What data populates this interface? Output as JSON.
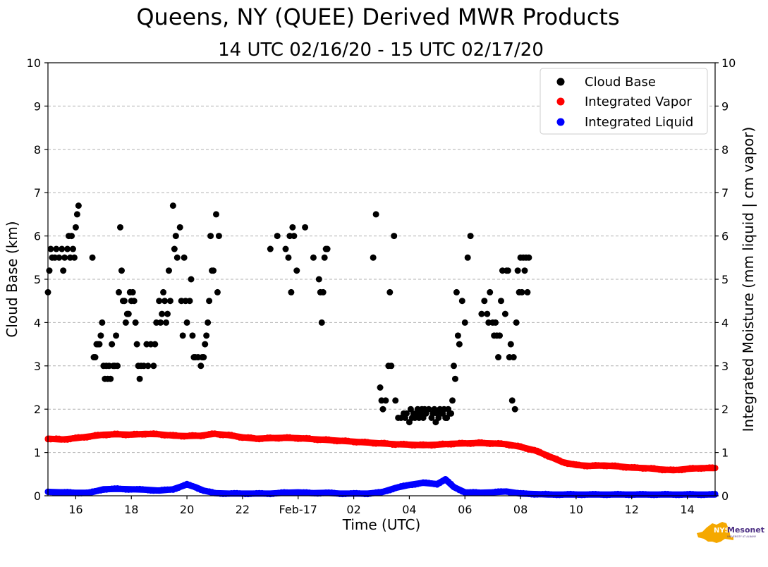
{
  "chart_data": {
    "type": "scatter",
    "title": "Queens, NY (QUEE) Derived MWR Products",
    "subtitle": "14 UTC 02/16/20 - 15 UTC 02/17/20",
    "xlabel": "Time (UTC)",
    "ylabel": "Cloud Base (km)",
    "ylabel_right": "Integrated Moisture (mm liquid | cm vapor)",
    "xlim": [
      15,
      39
    ],
    "ylim": [
      0,
      10
    ],
    "grid": true,
    "legend_position": "top-right",
    "x_ticks": [
      {
        "value": 16,
        "label": "16"
      },
      {
        "value": 18,
        "label": "18"
      },
      {
        "value": 20,
        "label": "20"
      },
      {
        "value": 22,
        "label": "22"
      },
      {
        "value": 24,
        "label": "Feb-17"
      },
      {
        "value": 26,
        "label": "02"
      },
      {
        "value": 28,
        "label": "04"
      },
      {
        "value": 30,
        "label": "06"
      },
      {
        "value": 32,
        "label": "08"
      },
      {
        "value": 34,
        "label": "10"
      },
      {
        "value": 36,
        "label": "12"
      },
      {
        "value": 38,
        "label": "14"
      }
    ],
    "y_ticks": [
      "0",
      "1",
      "2",
      "3",
      "4",
      "5",
      "6",
      "7",
      "8",
      "9",
      "10"
    ],
    "series": [
      {
        "name": "Cloud Base",
        "color": "#000000",
        "points": [
          [
            15.0,
            4.7
          ],
          [
            15.05,
            5.2
          ],
          [
            15.1,
            5.7
          ],
          [
            15.15,
            5.5
          ],
          [
            15.25,
            5.5
          ],
          [
            15.3,
            5.7
          ],
          [
            15.4,
            5.5
          ],
          [
            15.5,
            5.7
          ],
          [
            15.55,
            5.2
          ],
          [
            15.6,
            5.5
          ],
          [
            15.7,
            5.7
          ],
          [
            15.75,
            6.0
          ],
          [
            15.8,
            5.5
          ],
          [
            15.85,
            6.0
          ],
          [
            15.9,
            5.7
          ],
          [
            15.95,
            5.5
          ],
          [
            16.0,
            6.2
          ],
          [
            16.05,
            6.5
          ],
          [
            16.1,
            6.7
          ],
          [
            16.6,
            5.5
          ],
          [
            16.65,
            3.2
          ],
          [
            16.7,
            3.2
          ],
          [
            16.75,
            3.5
          ],
          [
            16.8,
            3.5
          ],
          [
            16.85,
            3.5
          ],
          [
            16.9,
            3.7
          ],
          [
            16.95,
            4.0
          ],
          [
            17.0,
            3.0
          ],
          [
            17.05,
            2.7
          ],
          [
            17.1,
            3.0
          ],
          [
            17.15,
            2.7
          ],
          [
            17.2,
            3.0
          ],
          [
            17.25,
            2.7
          ],
          [
            17.3,
            3.5
          ],
          [
            17.35,
            3.0
          ],
          [
            17.4,
            3.0
          ],
          [
            17.45,
            3.7
          ],
          [
            17.5,
            3.0
          ],
          [
            17.55,
            4.7
          ],
          [
            17.6,
            6.2
          ],
          [
            17.65,
            5.2
          ],
          [
            17.7,
            4.5
          ],
          [
            17.75,
            4.5
          ],
          [
            17.8,
            4.0
          ],
          [
            17.85,
            4.2
          ],
          [
            17.9,
            4.2
          ],
          [
            17.95,
            4.7
          ],
          [
            18.0,
            4.5
          ],
          [
            18.05,
            4.7
          ],
          [
            18.1,
            4.5
          ],
          [
            18.15,
            4.0
          ],
          [
            18.2,
            3.5
          ],
          [
            18.25,
            3.0
          ],
          [
            18.3,
            2.7
          ],
          [
            18.35,
            3.0
          ],
          [
            18.45,
            3.0
          ],
          [
            18.55,
            3.5
          ],
          [
            18.6,
            3.0
          ],
          [
            18.7,
            3.5
          ],
          [
            18.8,
            3.0
          ],
          [
            18.85,
            3.5
          ],
          [
            18.9,
            4.0
          ],
          [
            19.0,
            4.5
          ],
          [
            19.05,
            4.0
          ],
          [
            19.1,
            4.2
          ],
          [
            19.15,
            4.7
          ],
          [
            19.2,
            4.5
          ],
          [
            19.25,
            4.0
          ],
          [
            19.3,
            4.2
          ],
          [
            19.35,
            5.2
          ],
          [
            19.4,
            4.5
          ],
          [
            19.5,
            6.7
          ],
          [
            19.55,
            5.7
          ],
          [
            19.6,
            6.0
          ],
          [
            19.65,
            5.5
          ],
          [
            19.75,
            6.2
          ],
          [
            19.8,
            4.5
          ],
          [
            19.85,
            3.7
          ],
          [
            19.9,
            5.5
          ],
          [
            19.95,
            4.5
          ],
          [
            20.0,
            4.0
          ],
          [
            20.1,
            4.5
          ],
          [
            20.15,
            5.0
          ],
          [
            20.2,
            3.7
          ],
          [
            20.25,
            3.2
          ],
          [
            20.3,
            3.2
          ],
          [
            20.4,
            3.2
          ],
          [
            20.5,
            3.0
          ],
          [
            20.55,
            3.2
          ],
          [
            20.6,
            3.2
          ],
          [
            20.65,
            3.5
          ],
          [
            20.7,
            3.7
          ],
          [
            20.75,
            4.0
          ],
          [
            20.8,
            4.5
          ],
          [
            20.85,
            6.0
          ],
          [
            20.9,
            5.2
          ],
          [
            20.95,
            5.2
          ],
          [
            21.05,
            6.5
          ],
          [
            21.1,
            4.7
          ],
          [
            21.15,
            6.0
          ],
          [
            23.0,
            5.7
          ],
          [
            23.25,
            6.0
          ],
          [
            23.55,
            5.7
          ],
          [
            23.65,
            5.5
          ],
          [
            23.7,
            6.0
          ],
          [
            23.75,
            4.7
          ],
          [
            23.8,
            6.2
          ],
          [
            23.85,
            6.0
          ],
          [
            23.95,
            5.2
          ],
          [
            24.25,
            6.2
          ],
          [
            24.55,
            5.5
          ],
          [
            24.75,
            5.0
          ],
          [
            24.8,
            4.7
          ],
          [
            24.85,
            4.0
          ],
          [
            24.9,
            4.7
          ],
          [
            24.95,
            5.5
          ],
          [
            25.0,
            5.7
          ],
          [
            25.05,
            5.7
          ],
          [
            26.7,
            5.5
          ],
          [
            26.8,
            6.5
          ],
          [
            26.95,
            2.5
          ],
          [
            27.0,
            2.2
          ],
          [
            27.05,
            2.0
          ],
          [
            27.15,
            2.2
          ],
          [
            27.25,
            3.0
          ],
          [
            27.3,
            4.7
          ],
          [
            27.35,
            3.0
          ],
          [
            27.45,
            6.0
          ],
          [
            27.5,
            2.2
          ],
          [
            27.6,
            1.8
          ],
          [
            27.7,
            1.8
          ],
          [
            27.8,
            1.9
          ],
          [
            27.85,
            1.8
          ],
          [
            27.9,
            1.9
          ],
          [
            28.0,
            1.7
          ],
          [
            28.05,
            2.0
          ],
          [
            28.1,
            1.8
          ],
          [
            28.15,
            1.9
          ],
          [
            28.2,
            1.8
          ],
          [
            28.25,
            1.9
          ],
          [
            28.3,
            2.0
          ],
          [
            28.35,
            1.8
          ],
          [
            28.4,
            1.9
          ],
          [
            28.45,
            2.0
          ],
          [
            28.5,
            1.8
          ],
          [
            28.55,
            2.0
          ],
          [
            28.6,
            1.9
          ],
          [
            28.7,
            2.0
          ],
          [
            28.8,
            1.8
          ],
          [
            28.85,
            1.9
          ],
          [
            28.9,
            2.0
          ],
          [
            28.95,
            1.7
          ],
          [
            29.0,
            1.9
          ],
          [
            29.05,
            1.8
          ],
          [
            29.1,
            2.0
          ],
          [
            29.2,
            1.9
          ],
          [
            29.25,
            2.0
          ],
          [
            29.3,
            1.8
          ],
          [
            29.35,
            1.8
          ],
          [
            29.4,
            2.0
          ],
          [
            29.45,
            1.9
          ],
          [
            29.5,
            1.9
          ],
          [
            29.55,
            2.2
          ],
          [
            29.6,
            3.0
          ],
          [
            29.65,
            2.7
          ],
          [
            29.7,
            4.7
          ],
          [
            29.75,
            3.7
          ],
          [
            29.8,
            3.5
          ],
          [
            29.9,
            4.5
          ],
          [
            30.0,
            4.0
          ],
          [
            30.1,
            5.5
          ],
          [
            30.2,
            6.0
          ],
          [
            30.6,
            4.2
          ],
          [
            30.7,
            4.5
          ],
          [
            30.8,
            4.2
          ],
          [
            30.85,
            4.0
          ],
          [
            30.9,
            4.7
          ],
          [
            31.0,
            4.0
          ],
          [
            31.05,
            3.7
          ],
          [
            31.1,
            4.0
          ],
          [
            31.15,
            3.7
          ],
          [
            31.2,
            3.2
          ],
          [
            31.25,
            3.7
          ],
          [
            31.3,
            4.5
          ],
          [
            31.35,
            5.2
          ],
          [
            31.45,
            4.2
          ],
          [
            31.5,
            5.2
          ],
          [
            31.55,
            5.2
          ],
          [
            31.6,
            3.2
          ],
          [
            31.65,
            3.5
          ],
          [
            31.7,
            2.2
          ],
          [
            31.75,
            3.2
          ],
          [
            31.8,
            2.0
          ],
          [
            31.85,
            4.0
          ],
          [
            31.9,
            5.2
          ],
          [
            31.95,
            4.7
          ],
          [
            32.0,
            5.5
          ],
          [
            32.05,
            4.7
          ],
          [
            32.1,
            5.5
          ],
          [
            32.15,
            5.2
          ],
          [
            32.2,
            5.5
          ],
          [
            32.25,
            4.7
          ],
          [
            32.3,
            5.5
          ]
        ]
      },
      {
        "name": "Integrated Vapor",
        "color": "#ff0000",
        "points": [
          [
            15.0,
            1.32
          ],
          [
            15.5,
            1.3
          ],
          [
            16.0,
            1.33
          ],
          [
            16.5,
            1.37
          ],
          [
            17.0,
            1.41
          ],
          [
            17.5,
            1.42
          ],
          [
            18.0,
            1.41
          ],
          [
            18.5,
            1.43
          ],
          [
            19.0,
            1.42
          ],
          [
            19.5,
            1.39
          ],
          [
            20.0,
            1.38
          ],
          [
            20.5,
            1.39
          ],
          [
            21.0,
            1.43
          ],
          [
            21.5,
            1.4
          ],
          [
            22.0,
            1.35
          ],
          [
            22.5,
            1.32
          ],
          [
            23.0,
            1.33
          ],
          [
            23.5,
            1.34
          ],
          [
            24.0,
            1.33
          ],
          [
            24.5,
            1.31
          ],
          [
            25.0,
            1.29
          ],
          [
            25.5,
            1.27
          ],
          [
            26.0,
            1.25
          ],
          [
            26.5,
            1.23
          ],
          [
            27.0,
            1.21
          ],
          [
            27.5,
            1.19
          ],
          [
            28.0,
            1.18
          ],
          [
            28.5,
            1.17
          ],
          [
            29.0,
            1.18
          ],
          [
            29.5,
            1.2
          ],
          [
            30.0,
            1.21
          ],
          [
            30.5,
            1.22
          ],
          [
            31.0,
            1.21
          ],
          [
            31.5,
            1.19
          ],
          [
            32.0,
            1.13
          ],
          [
            32.5,
            1.05
          ],
          [
            33.0,
            0.92
          ],
          [
            33.5,
            0.78
          ],
          [
            34.0,
            0.71
          ],
          [
            34.5,
            0.69
          ],
          [
            35.0,
            0.7
          ],
          [
            35.5,
            0.68
          ],
          [
            36.0,
            0.65
          ],
          [
            36.5,
            0.64
          ],
          [
            37.0,
            0.61
          ],
          [
            37.5,
            0.59
          ],
          [
            38.0,
            0.62
          ],
          [
            38.5,
            0.64
          ],
          [
            39.0,
            0.64
          ]
        ]
      },
      {
        "name": "Integrated Liquid",
        "color": "#0000ff",
        "points": [
          [
            15.0,
            0.09
          ],
          [
            15.5,
            0.08
          ],
          [
            16.0,
            0.07
          ],
          [
            16.5,
            0.07
          ],
          [
            17.0,
            0.15
          ],
          [
            17.5,
            0.16
          ],
          [
            18.0,
            0.15
          ],
          [
            18.5,
            0.14
          ],
          [
            19.0,
            0.12
          ],
          [
            19.5,
            0.15
          ],
          [
            20.0,
            0.26
          ],
          [
            20.3,
            0.2
          ],
          [
            20.6,
            0.12
          ],
          [
            21.0,
            0.06
          ],
          [
            21.5,
            0.05
          ],
          [
            22.0,
            0.05
          ],
          [
            22.5,
            0.05
          ],
          [
            23.0,
            0.05
          ],
          [
            23.5,
            0.07
          ],
          [
            24.0,
            0.08
          ],
          [
            24.5,
            0.06
          ],
          [
            25.0,
            0.07
          ],
          [
            25.5,
            0.05
          ],
          [
            26.0,
            0.05
          ],
          [
            26.5,
            0.05
          ],
          [
            27.0,
            0.08
          ],
          [
            27.5,
            0.18
          ],
          [
            28.0,
            0.25
          ],
          [
            28.5,
            0.3
          ],
          [
            29.0,
            0.27
          ],
          [
            29.3,
            0.38
          ],
          [
            29.6,
            0.2
          ],
          [
            30.0,
            0.08
          ],
          [
            30.5,
            0.07
          ],
          [
            31.0,
            0.08
          ],
          [
            31.5,
            0.1
          ],
          [
            32.0,
            0.05
          ],
          [
            32.5,
            0.04
          ],
          [
            33.0,
            0.03
          ],
          [
            34.0,
            0.03
          ],
          [
            35.0,
            0.03
          ],
          [
            36.0,
            0.03
          ],
          [
            37.0,
            0.03
          ],
          [
            38.0,
            0.03
          ],
          [
            39.0,
            0.03
          ]
        ]
      }
    ]
  },
  "logo": {
    "text": "NYS Mesonet",
    "subtext": "UNIVERSITY AT ALBANY",
    "color": "#f5a800",
    "accent": "#4b2e83"
  }
}
